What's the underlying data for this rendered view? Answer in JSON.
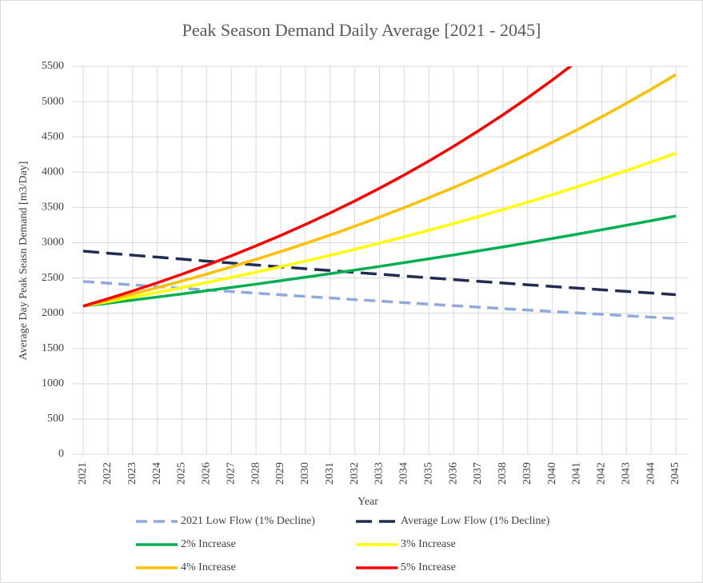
{
  "chart_data": {
    "type": "line",
    "title": "Peak Season Demand Daily Average [2021 - 2045]",
    "x_label": "Year",
    "y_label": "Average Day Peak Seasn Demand [m3/Day]",
    "categories": [
      "2021",
      "2022",
      "2023",
      "2024",
      "2025",
      "2026",
      "2027",
      "2028",
      "2029",
      "2030",
      "2031",
      "2032",
      "2033",
      "2034",
      "2035",
      "2036",
      "2037",
      "2038",
      "2039",
      "2040",
      "2041",
      "2042",
      "2043",
      "2044",
      "2045"
    ],
    "ylim": [
      0,
      5500
    ],
    "yticks": [
      0,
      500,
      1000,
      1500,
      2000,
      2500,
      3000,
      3500,
      4000,
      4500,
      5000,
      5500
    ],
    "grid": true,
    "legend": "bottom",
    "series": [
      {
        "name": "2021 Low Flow (1% Decline)",
        "color": "#8faadc",
        "style": "dashed",
        "values": [
          2450,
          2426,
          2401,
          2377,
          2354,
          2330,
          2307,
          2284,
          2261,
          2238,
          2216,
          2193,
          2172,
          2150,
          2128,
          2107,
          2086,
          2065,
          2045,
          2024,
          2004,
          1984,
          1964,
          1944,
          1925
        ]
      },
      {
        "name": "Average Low Flow (1% Decline)",
        "color": "#1f2d50",
        "style": "dashed",
        "values": [
          2880,
          2851,
          2823,
          2795,
          2767,
          2739,
          2711,
          2684,
          2657,
          2631,
          2605,
          2578,
          2553,
          2527,
          2502,
          2477,
          2452,
          2428,
          2403,
          2379,
          2356,
          2332,
          2309,
          2286,
          2263
        ]
      },
      {
        "name": "2% Increase",
        "color": "#00b050",
        "style": "solid",
        "values": [
          2100,
          2142,
          2185,
          2229,
          2273,
          2319,
          2365,
          2412,
          2461,
          2510,
          2560,
          2611,
          2663,
          2717,
          2771,
          2826,
          2883,
          2940,
          2999,
          3059,
          3120,
          3183,
          3247,
          3311,
          3378
        ]
      },
      {
        "name": "3% Increase",
        "color": "#ffff00",
        "style": "solid",
        "values": [
          2100,
          2163,
          2228,
          2295,
          2364,
          2435,
          2508,
          2583,
          2660,
          2740,
          2822,
          2907,
          2994,
          3084,
          3176,
          3272,
          3370,
          3471,
          3575,
          3682,
          3793,
          3907,
          4024,
          4145,
          4269
        ]
      },
      {
        "name": "4% Increase",
        "color": "#ffc000",
        "style": "solid",
        "values": [
          2100,
          2184,
          2271,
          2362,
          2457,
          2555,
          2657,
          2763,
          2874,
          2989,
          3108,
          3233,
          3362,
          3497,
          3637,
          3782,
          3933,
          4091,
          4254,
          4424,
          4601,
          4785,
          4977,
          5176,
          5383
        ]
      },
      {
        "name": "5% Increase",
        "color": "#ff0000",
        "style": "solid",
        "values": [
          2100,
          2205,
          2315,
          2431,
          2553,
          2680,
          2814,
          2955,
          3103,
          3258,
          3421,
          3592,
          3771,
          3960,
          4158,
          4366,
          4584,
          4813,
          5054,
          5307,
          5572,
          null,
          null,
          null,
          null
        ]
      }
    ]
  }
}
